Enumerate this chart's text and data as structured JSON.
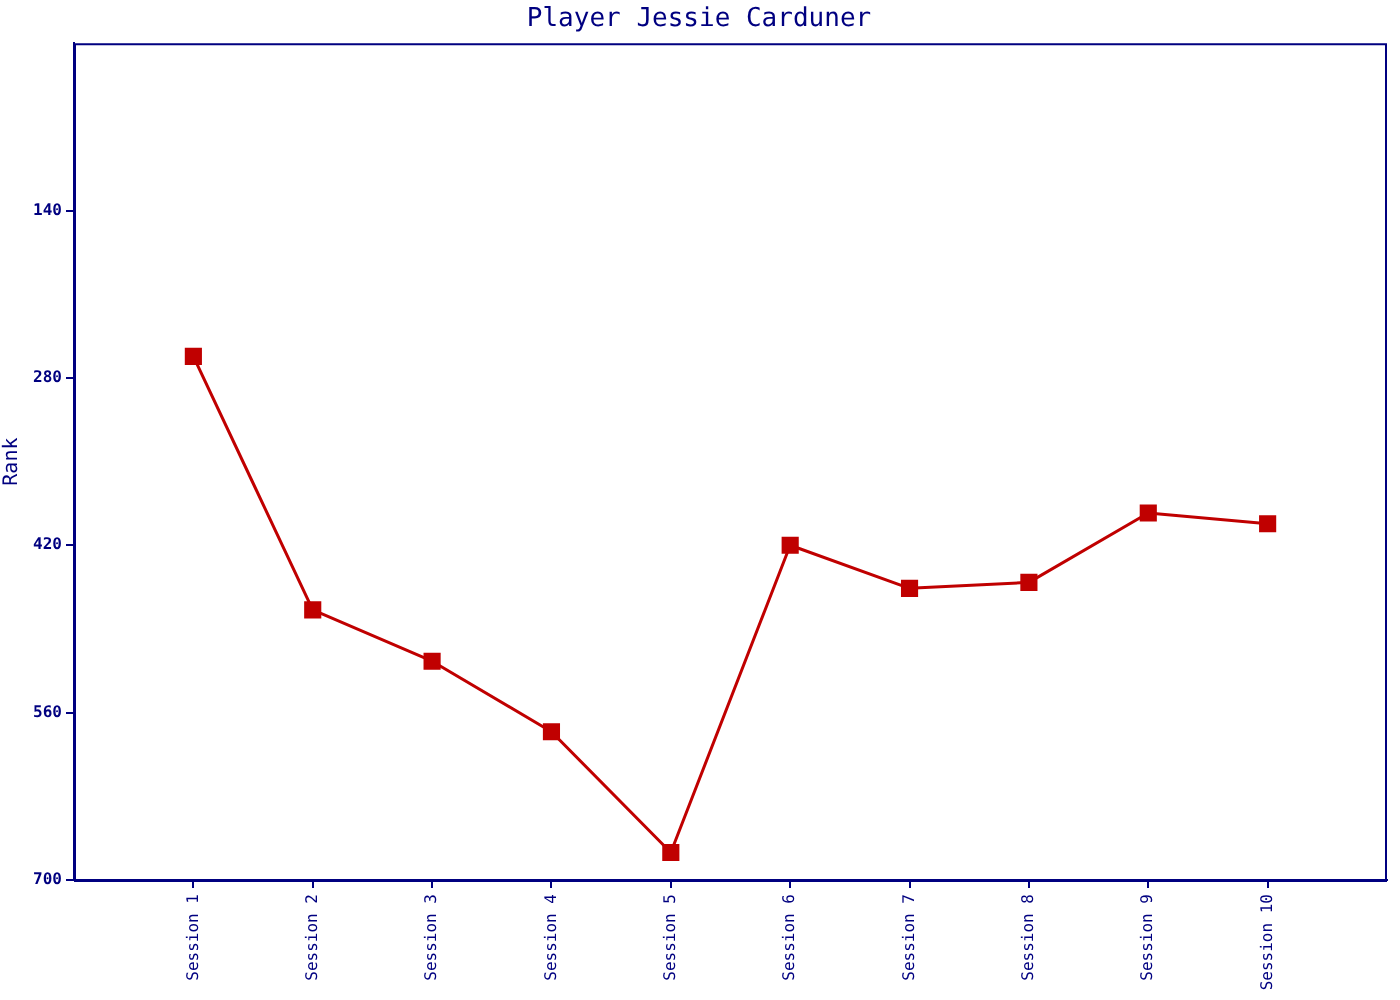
{
  "chart_data": {
    "type": "line",
    "title": "Player Jessie Carduner",
    "ylabel": "Rank",
    "categories": [
      "Session 1",
      "Session 2",
      "Session 3",
      "Session 4",
      "Session 5",
      "Session 6",
      "Session 7",
      "Session 8",
      "Session 9",
      "Session 10"
    ],
    "series": [
      {
        "color": "#c00000",
        "values": [
          262,
          474,
          517,
          576,
          677,
          420,
          456,
          451,
          393,
          402
        ]
      }
    ],
    "ylim": [
      700,
      0
    ],
    "yticks": [
      140,
      280,
      420,
      560,
      700
    ],
    "grid": false,
    "legend": false,
    "marker": "square",
    "line_style": "solid"
  }
}
